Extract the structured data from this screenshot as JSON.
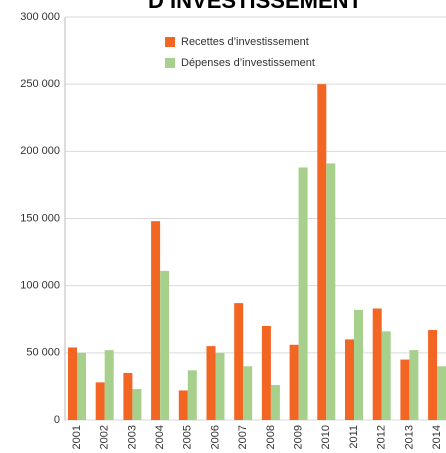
{
  "chart_data": {
    "type": "bar",
    "title": "D’INVESTISSEMENT",
    "categories": [
      "2001",
      "2002",
      "2003",
      "2004",
      "2005",
      "2006",
      "2007",
      "2008",
      "2009",
      "2010",
      "2011",
      "2012",
      "2013",
      "2014"
    ],
    "series": [
      {
        "name": "Recettes d’investissement",
        "color": "#f26522",
        "values": [
          54000,
          28000,
          35000,
          148000,
          22000,
          55000,
          87000,
          70000,
          56000,
          250000,
          60000,
          83000,
          45000,
          67000
        ]
      },
      {
        "name": "Dépenses d’investissement",
        "color": "#a8d08d",
        "values": [
          50000,
          52000,
          23000,
          111000,
          37000,
          50000,
          40000,
          26000,
          188000,
          191000,
          82000,
          66000,
          52000,
          40000
        ]
      }
    ],
    "ylim": [
      0,
      300000
    ],
    "yticks": [
      0,
      {
        "value": 50000,
        "label": "50 000"
      },
      {
        "value": 100000,
        "label": "100 000"
      },
      {
        "value": 150000,
        "label": "150 000"
      },
      {
        "value": 200000,
        "label": "200 000"
      },
      {
        "value": 250000,
        "label": "250 000"
      },
      {
        "value": 300000,
        "label": "300 000"
      }
    ],
    "grid": true,
    "legend": "top"
  }
}
